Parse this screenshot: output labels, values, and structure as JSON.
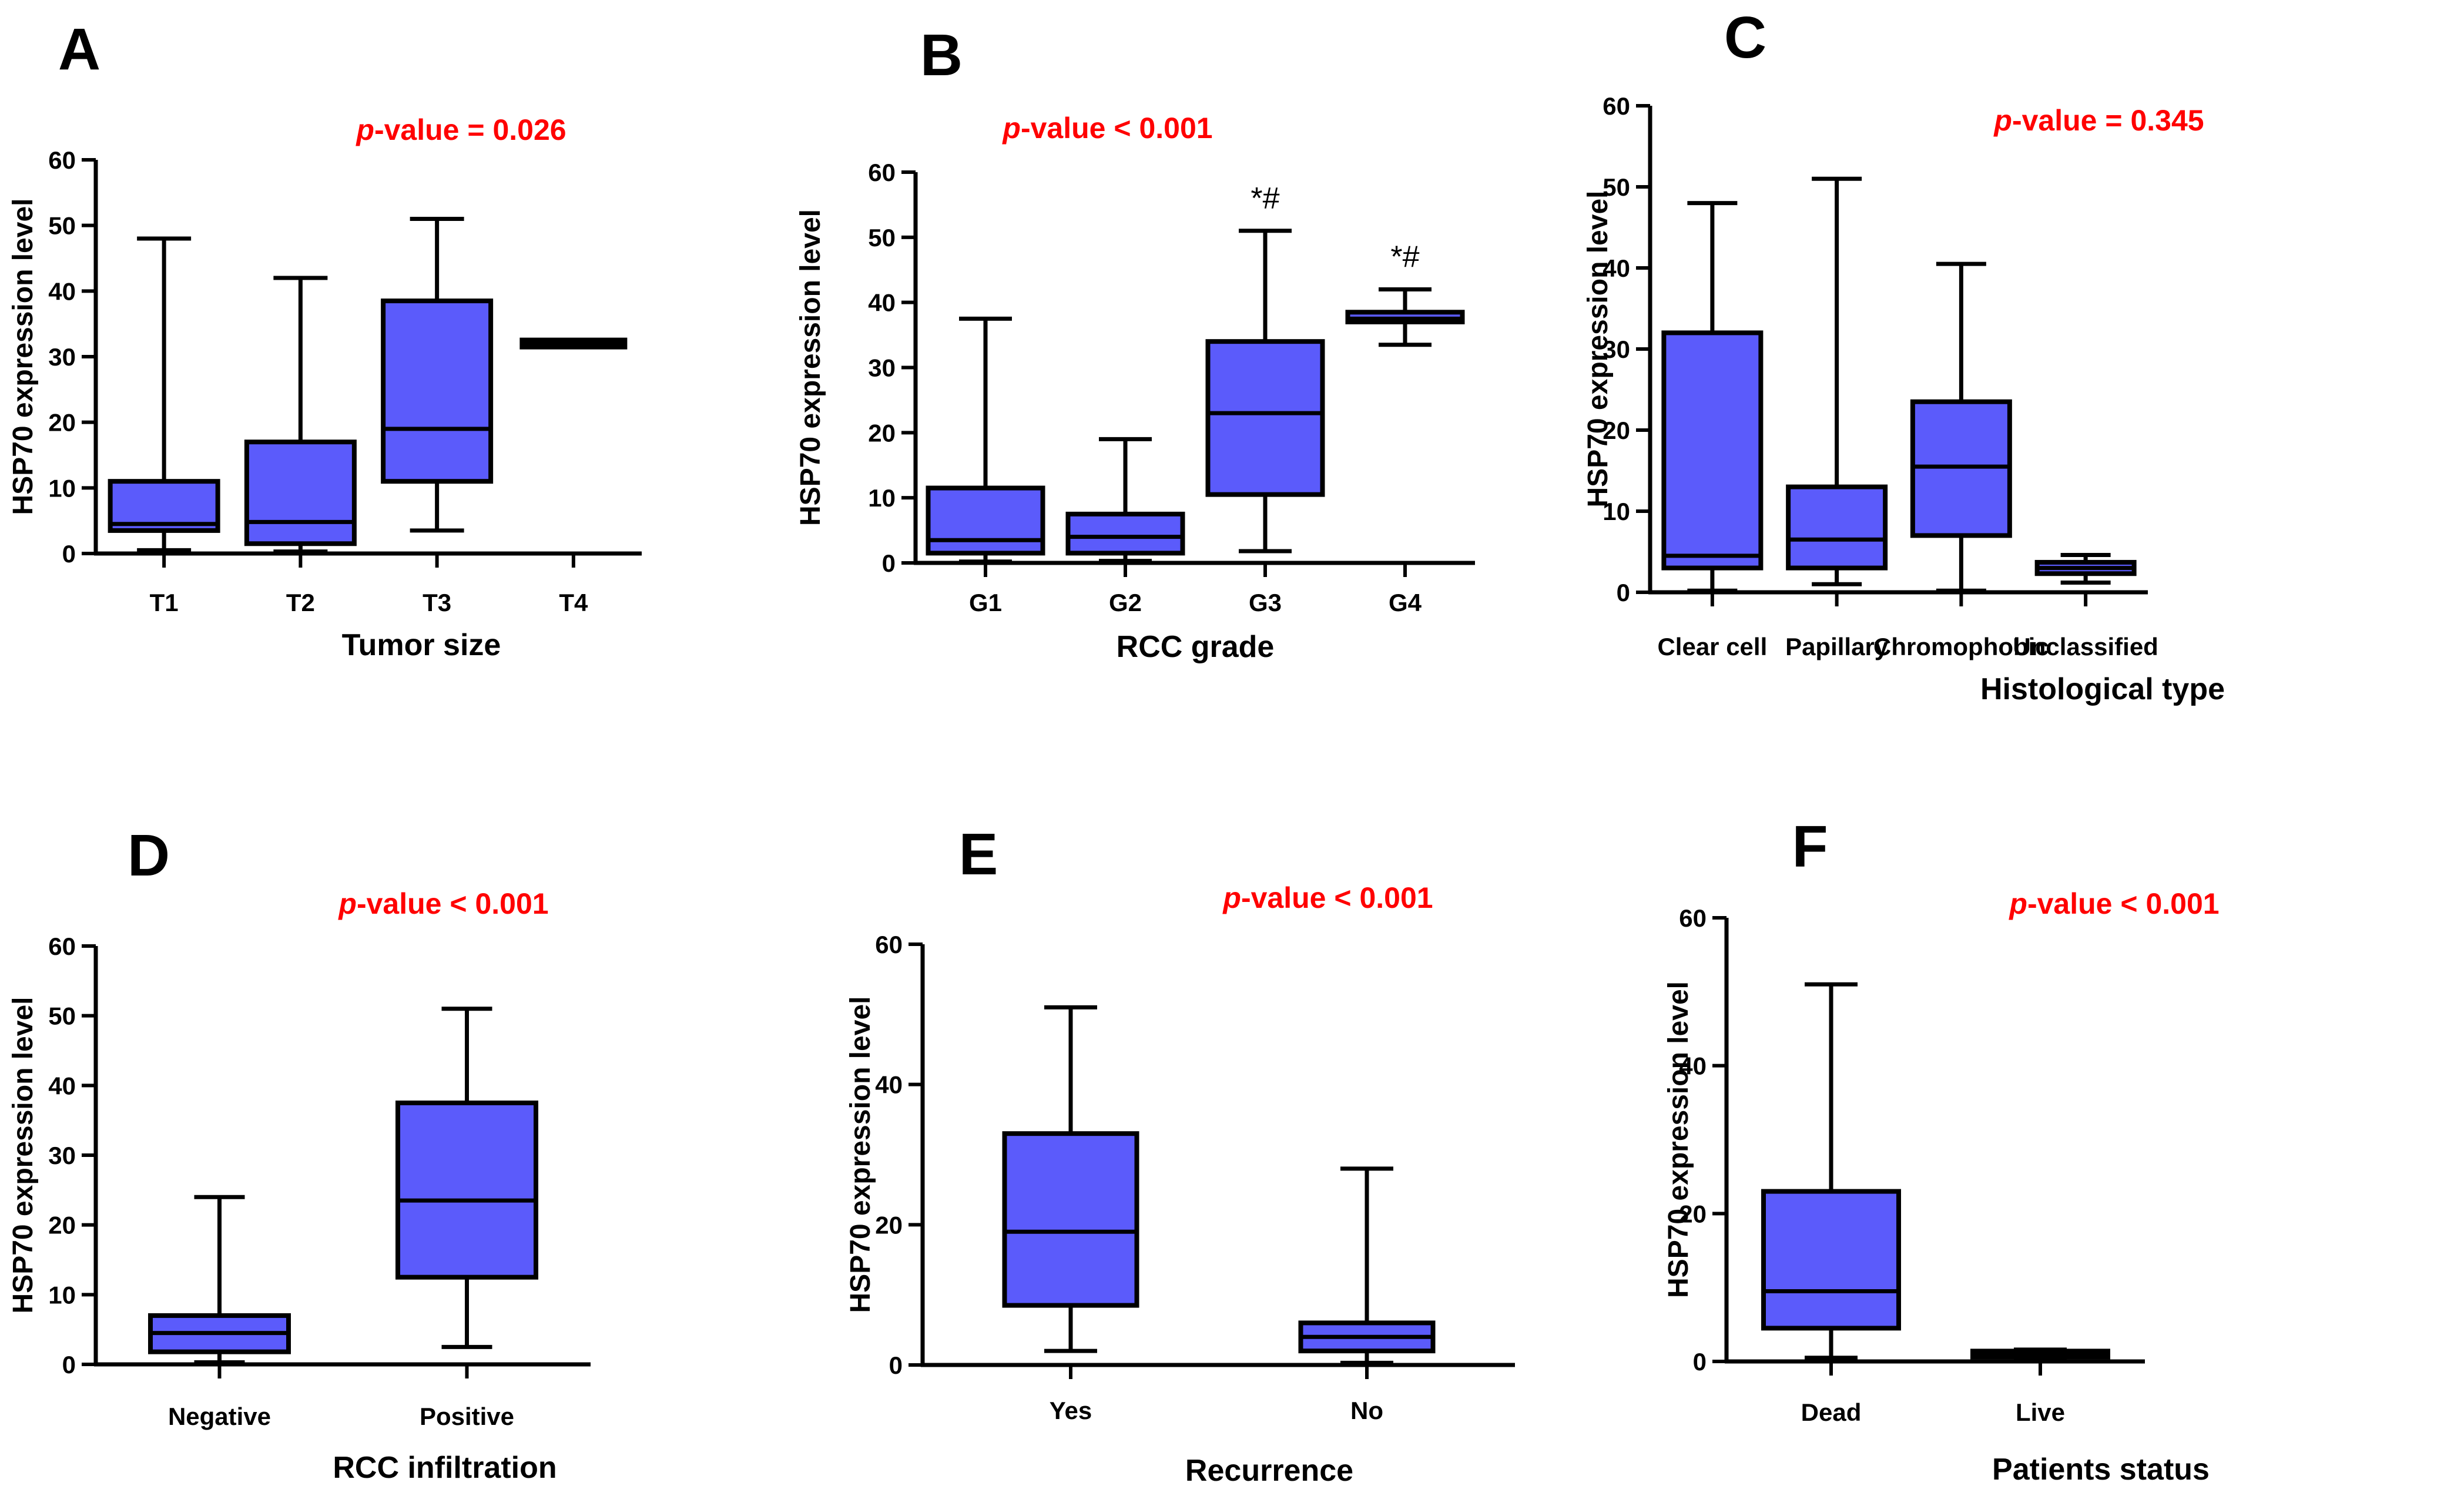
{
  "style": {
    "box_fill": "#5b5bfb",
    "stroke": "#000000",
    "pvalue_color": "#ff0000"
  },
  "chart_data": [
    {
      "panel": "A",
      "type": "boxplot",
      "pvalue_prefix": "p",
      "pvalue_rest": "-value = 0.026",
      "xlabel": "Tumor size",
      "ylabel": "HSP70 expression level",
      "ylim": [
        0,
        60
      ],
      "yticks": [
        0,
        10,
        20,
        30,
        40,
        50,
        60
      ],
      "categories": [
        "T1",
        "T2",
        "T3",
        "T4"
      ],
      "boxes": [
        {
          "min": 0.5,
          "q1": 3.5,
          "median": 4.5,
          "q3": 11,
          "max": 48
        },
        {
          "min": 0.3,
          "q1": 1.5,
          "median": 4.8,
          "q3": 17,
          "max": 42
        },
        {
          "min": 3.5,
          "q1": 11,
          "median": 19,
          "q3": 38.5,
          "max": 51
        },
        {
          "min": 32,
          "q1": 32,
          "median": 32,
          "q3": 32,
          "max": 32
        }
      ],
      "annotations": [
        "",
        "",
        "",
        ""
      ]
    },
    {
      "panel": "B",
      "type": "boxplot",
      "pvalue_prefix": "p",
      "pvalue_rest": "-value < 0.001",
      "xlabel": "RCC grade",
      "ylabel": "HSP70 expression level",
      "ylim": [
        0,
        60
      ],
      "yticks": [
        0,
        10,
        20,
        30,
        40,
        50,
        60
      ],
      "categories": [
        "G1",
        "G2",
        "G3",
        "G4"
      ],
      "boxes": [
        {
          "min": 0.2,
          "q1": 1.5,
          "median": 3.5,
          "q3": 11.5,
          "max": 37.5
        },
        {
          "min": 0.3,
          "q1": 1.5,
          "median": 4,
          "q3": 7.5,
          "max": 19
        },
        {
          "min": 1.8,
          "q1": 10.5,
          "median": 23,
          "q3": 34,
          "max": 51
        },
        {
          "min": 33.5,
          "q1": 37,
          "median": 37.5,
          "q3": 38.5,
          "max": 42
        }
      ],
      "annotations": [
        "",
        "",
        "*#",
        "*#"
      ]
    },
    {
      "panel": "C",
      "type": "boxplot",
      "pvalue_prefix": "p",
      "pvalue_rest": "-value = 0.345",
      "xlabel": "Histological type",
      "ylabel": "HSP70 expression level",
      "ylim": [
        0,
        60
      ],
      "yticks": [
        0,
        10,
        20,
        30,
        40,
        50,
        60
      ],
      "categories": [
        "Clear cell",
        "Papillary",
        "Chromophobic",
        "Unclassified"
      ],
      "boxes": [
        {
          "min": 0.2,
          "q1": 3,
          "median": 4.5,
          "q3": 32,
          "max": 48
        },
        {
          "min": 1,
          "q1": 3,
          "median": 6.5,
          "q3": 13,
          "max": 51
        },
        {
          "min": 0.2,
          "q1": 7,
          "median": 15.5,
          "q3": 23.5,
          "max": 40.5
        },
        {
          "min": 1.2,
          "q1": 2.3,
          "median": 3,
          "q3": 3.7,
          "max": 4.6
        }
      ],
      "annotations": [
        "",
        "",
        "",
        ""
      ]
    },
    {
      "panel": "D",
      "type": "boxplot",
      "pvalue_prefix": "p",
      "pvalue_rest": "-value < 0.001",
      "xlabel": "RCC infiltration",
      "ylabel": "HSP70 expression level",
      "ylim": [
        0,
        60
      ],
      "yticks": [
        0,
        10,
        20,
        30,
        40,
        50,
        60
      ],
      "categories": [
        "Negative",
        "Positive"
      ],
      "boxes": [
        {
          "min": 0.3,
          "q1": 1.8,
          "median": 4.5,
          "q3": 7,
          "max": 24
        },
        {
          "min": 2.5,
          "q1": 12.5,
          "median": 23.5,
          "q3": 37.5,
          "max": 51
        }
      ],
      "annotations": [
        "",
        ""
      ]
    },
    {
      "panel": "E",
      "type": "boxplot",
      "pvalue_prefix": "p",
      "pvalue_rest": "-value < 0.001",
      "xlabel": "Recurrence",
      "ylabel": "HSP70 expression level",
      "ylim": [
        0,
        60
      ],
      "yticks": [
        0,
        20,
        40,
        60
      ],
      "categories": [
        "Yes",
        "No"
      ],
      "boxes": [
        {
          "min": 2,
          "q1": 8.5,
          "median": 19,
          "q3": 33,
          "max": 51
        },
        {
          "min": 0.3,
          "q1": 2,
          "median": 4,
          "q3": 6,
          "max": 28
        }
      ],
      "annotations": [
        "",
        ""
      ]
    },
    {
      "panel": "F",
      "type": "boxplot",
      "pvalue_prefix": "p",
      "pvalue_rest": "-value < 0.001",
      "xlabel": "Patients status",
      "ylabel": "HSP70 expression level",
      "ylim": [
        0,
        60
      ],
      "yticks": [
        0,
        20,
        40,
        60
      ],
      "categories": [
        "Dead",
        "Live"
      ],
      "boxes": [
        {
          "min": 0.5,
          "q1": 4.5,
          "median": 9.5,
          "q3": 23,
          "max": 51
        },
        {
          "min": 0.2,
          "q1": 0.6,
          "median": 1,
          "q3": 1.4,
          "max": 1.6
        }
      ],
      "annotations": [
        "",
        ""
      ]
    }
  ]
}
